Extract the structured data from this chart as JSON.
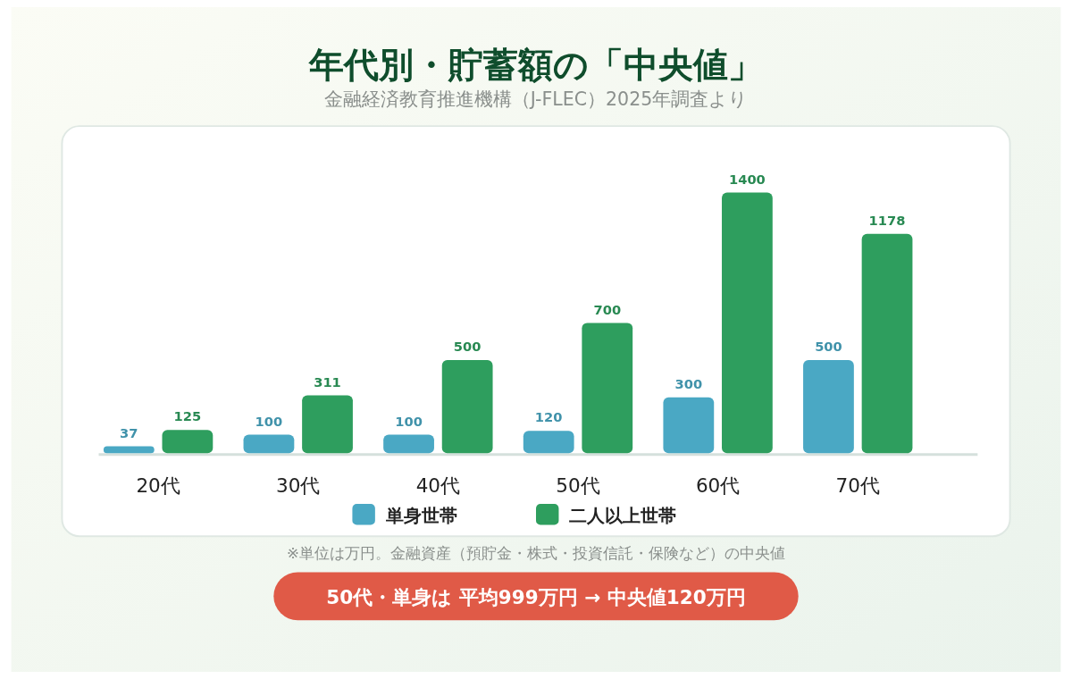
{
  "chart_data": {
    "type": "bar",
    "title": "年代別・貯蓄額の「中央値」",
    "subtitle": "金融経済教育推進機構（J-FLEC）2025年調査より",
    "categories": [
      "20代",
      "30代",
      "40代",
      "50代",
      "60代",
      "70代"
    ],
    "series": [
      {
        "name": "単身世帯",
        "color": "#4aa8c4",
        "values": [
          37,
          100,
          100,
          120,
          300,
          500
        ]
      },
      {
        "name": "二人以上世帯",
        "color": "#2e9e5e",
        "values": [
          125,
          311,
          500,
          700,
          1400,
          1178
        ]
      }
    ],
    "data_labels": true,
    "legend": "bottom",
    "annotations": [
      "※単位は万円。金融資産（預貯金・株式・投資信託・保険など）の中央値",
      "50代・単身は 平均999万円 → 中央値120万円"
    ]
  }
}
